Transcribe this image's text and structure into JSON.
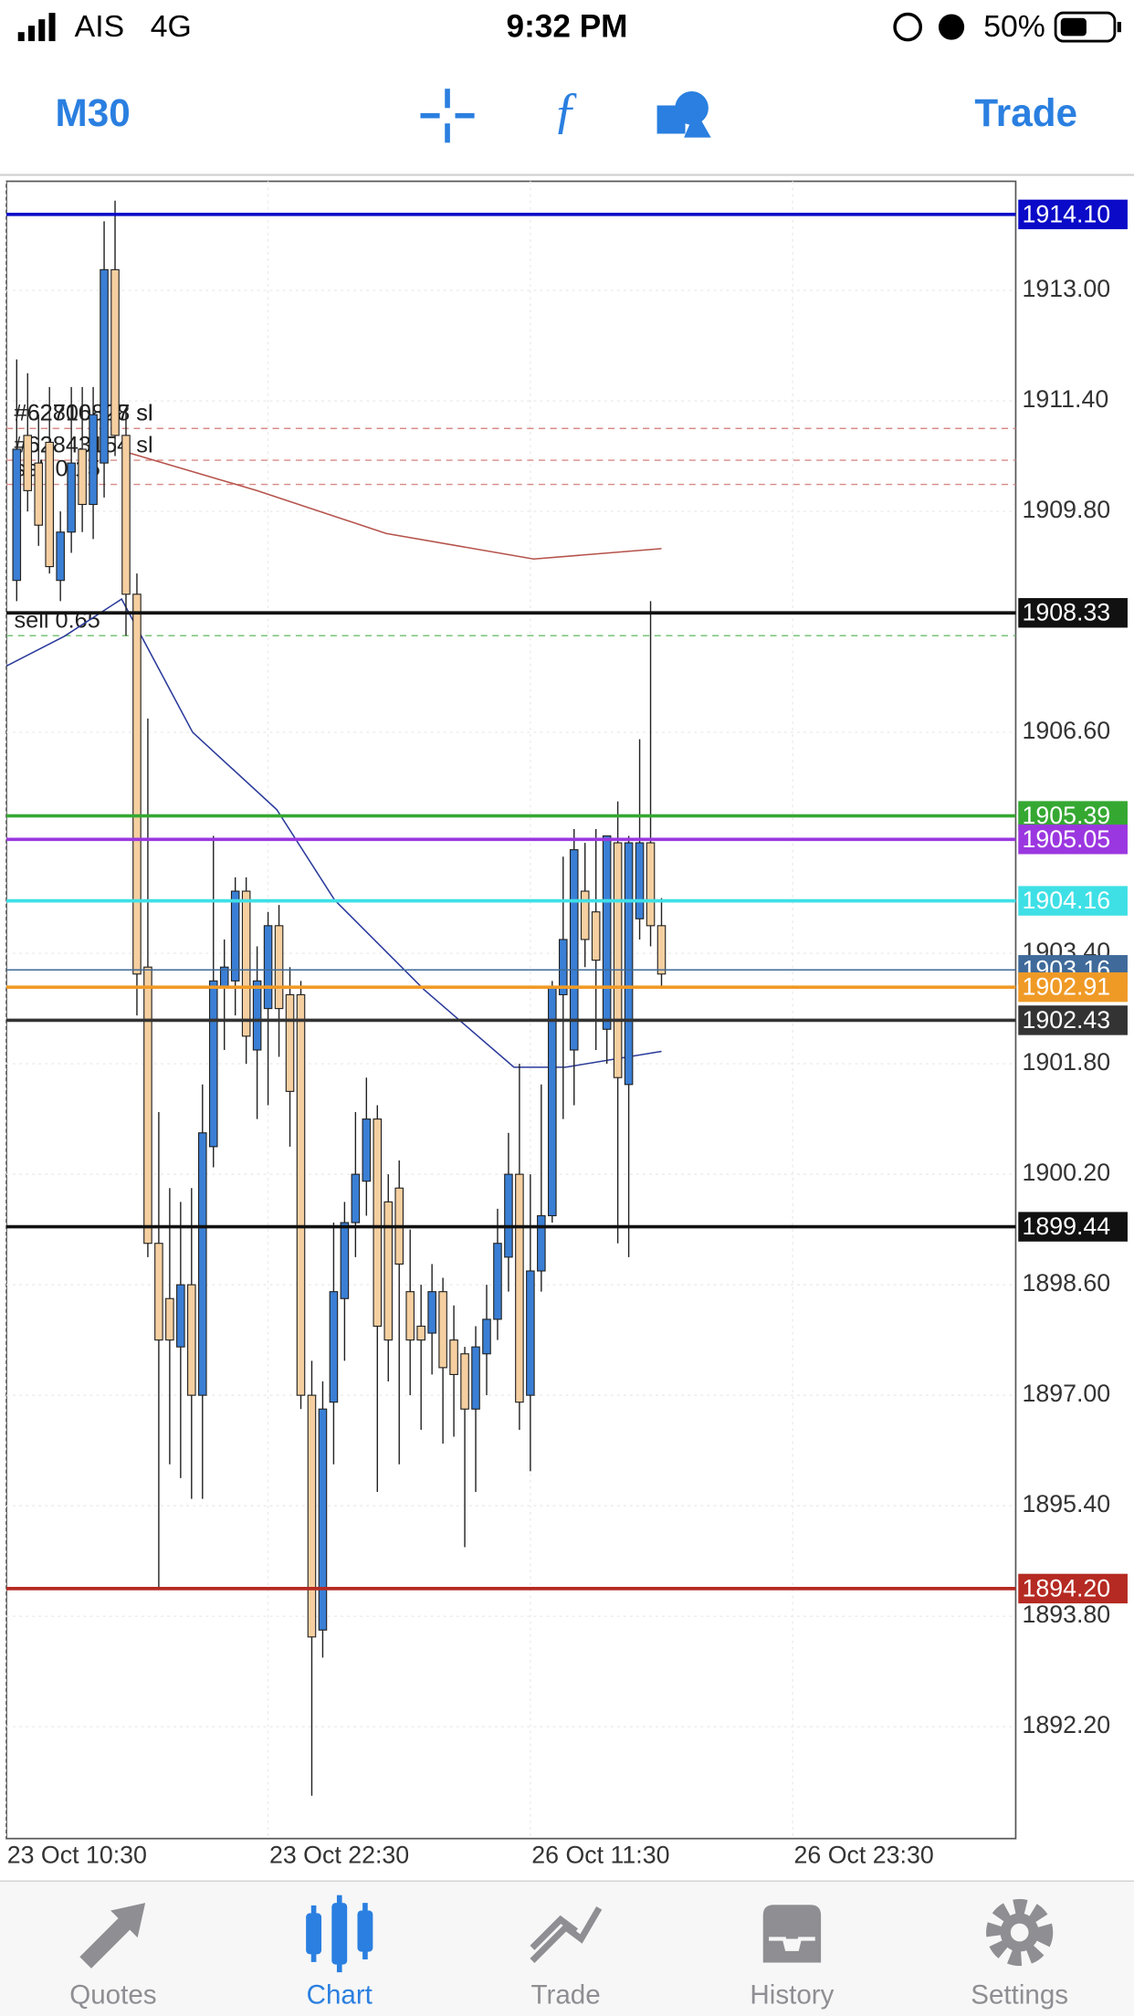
{
  "status_bar": {
    "carrier": "AIS",
    "network": "4G",
    "time": "9:32 PM",
    "battery": "50%"
  },
  "toolbar": {
    "timeframe": "M30",
    "trade": "Trade"
  },
  "chart_data": {
    "type": "candlestick",
    "up_color": "#3a7fd5",
    "down_color": "#f5cfa0",
    "grid": true,
    "ylim": [
      1890.58,
      1914.58
    ],
    "yticks": [
      {
        "value": 1913.0,
        "label": "1913.00"
      },
      {
        "value": 1911.4,
        "label": "1911.40"
      },
      {
        "value": 1909.8,
        "label": "1909.80"
      },
      {
        "value": 1906.6,
        "label": "1906.60"
      },
      {
        "value": 1903.4,
        "label": "1903.40"
      },
      {
        "value": 1901.8,
        "label": "1901.80"
      },
      {
        "value": 1900.2,
        "label": "1900.20"
      },
      {
        "value": 1898.6,
        "label": "1898.60"
      },
      {
        "value": 1897.0,
        "label": "1897.00"
      },
      {
        "value": 1895.4,
        "label": "1895.40"
      },
      {
        "value": 1893.8,
        "label": "1893.80"
      },
      {
        "value": 1892.2,
        "label": "1892.20"
      }
    ],
    "xlim": [
      -0.94,
      91.41
    ],
    "xticks": [
      {
        "value": -1,
        "label": "23 Oct 10:30"
      },
      {
        "value": 23,
        "label": "23 Oct 22:30"
      },
      {
        "value": 47,
        "label": "26 Oct 11:30"
      },
      {
        "value": 71,
        "label": "26 Oct 23:30"
      }
    ],
    "open": [
      1908.8,
      1910.9,
      1910.5,
      1910.8,
      1908.8,
      1909.5,
      1910.7,
      1909.9,
      1910.5,
      1913.3,
      1910.9,
      1908.6,
      1903.2,
      1899.2,
      1898.4,
      1897.7,
      1898.6,
      1897.0,
      1900.6,
      1902.9,
      1903.0,
      1904.3,
      1902.0,
      1902.6,
      1903.8,
      1902.8,
      1902.8,
      1897.0,
      1893.6,
      1896.9,
      1898.4,
      1899.5,
      1900.1,
      1901.0,
      1899.8,
      1900.0,
      1898.5,
      1898.0,
      1897.9,
      1898.5,
      1897.8,
      1897.6,
      1896.8,
      1897.6,
      1898.1,
      1899.0,
      1900.2,
      1897.0,
      1898.8,
      1899.6,
      1902.8,
      1902.0,
      1904.3,
      1904.0,
      1902.3,
      1905.0,
      1901.5,
      1903.9,
      1905.0,
      1903.8
    ],
    "high": [
      1912.0,
      1911.8,
      1911.2,
      1911.6,
      1909.8,
      1911.6,
      1911.6,
      1911.6,
      1914.0,
      1914.3,
      1911.3,
      1908.9,
      1906.8,
      1901.1,
      1900.0,
      1899.8,
      1900.0,
      1901.5,
      1905.1,
      1903.6,
      1904.5,
      1904.5,
      1903.5,
      1904.0,
      1904.1,
      1903.2,
      1903.0,
      1897.5,
      1897.2,
      1899.5,
      1899.8,
      1901.1,
      1901.6,
      1901.2,
      1900.2,
      1900.4,
      1899.4,
      1898.6,
      1898.9,
      1898.7,
      1898.3,
      1897.7,
      1898.0,
      1898.6,
      1899.7,
      1900.8,
      1901.8,
      1900.2,
      1901.5,
      1903.0,
      1904.8,
      1905.2,
      1905.0,
      1905.2,
      1905.1,
      1905.6,
      1905.1,
      1906.5,
      1908.5,
      1904.2
    ],
    "low": [
      1908.5,
      1909.8,
      1909.3,
      1908.9,
      1908.5,
      1909.2,
      1909.5,
      1909.4,
      1910.0,
      1910.6,
      1908.0,
      1902.5,
      1899.0,
      1894.2,
      1896.0,
      1895.8,
      1895.5,
      1895.5,
      1900.3,
      1902.0,
      1902.5,
      1901.8,
      1901.0,
      1901.2,
      1901.9,
      1900.6,
      1896.8,
      1891.2,
      1893.2,
      1896.0,
      1897.5,
      1899.0,
      1899.6,
      1895.6,
      1897.2,
      1896.0,
      1897.0,
      1896.5,
      1897.3,
      1896.3,
      1896.4,
      1894.8,
      1895.6,
      1897.0,
      1897.8,
      1898.5,
      1896.5,
      1895.9,
      1898.5,
      1899.5,
      1901.0,
      1901.2,
      1903.2,
      1902.0,
      1901.8,
      1899.2,
      1899.0,
      1903.6,
      1903.5,
      1902.9
    ],
    "close": [
      1910.7,
      1910.1,
      1909.6,
      1909.0,
      1909.5,
      1910.5,
      1909.9,
      1911.2,
      1913.3,
      1910.9,
      1908.6,
      1903.1,
      1899.2,
      1897.8,
      1897.8,
      1898.6,
      1897.0,
      1900.8,
      1903.0,
      1903.2,
      1904.3,
      1902.2,
      1903.0,
      1903.8,
      1902.6,
      1901.4,
      1897.0,
      1893.5,
      1896.8,
      1898.5,
      1899.5,
      1900.2,
      1901.0,
      1898.0,
      1897.8,
      1898.9,
      1897.8,
      1897.8,
      1898.5,
      1897.4,
      1897.3,
      1896.8,
      1897.7,
      1898.1,
      1899.2,
      1900.2,
      1896.9,
      1898.8,
      1899.6,
      1902.9,
      1903.6,
      1904.9,
      1903.6,
      1903.3,
      1905.1,
      1901.6,
      1905.0,
      1905.0,
      1903.8,
      1903.1
    ],
    "moving_averages": [
      {
        "color": "#b5524a",
        "x": [
          10.2,
          22,
          33.8,
          47.3,
          59
        ],
        "values": [
          1910.65,
          1910.1,
          1909.48,
          1909.11,
          1909.26
        ]
      },
      {
        "color": "#2a3a9a",
        "x": [
          -0.94,
          4.35,
          9.6,
          16.1,
          23.8,
          29.1,
          37.3,
          45.5,
          50.2,
          59
        ],
        "values": [
          1907.56,
          1907.99,
          1908.53,
          1906.6,
          1905.48,
          1904.17,
          1902.87,
          1901.75,
          1901.75,
          1901.98
        ]
      }
    ],
    "levels": [
      {
        "value": 1914.1,
        "label": "1914.10",
        "color": "#0a0ac8"
      },
      {
        "value": 1908.33,
        "label": "1908.33",
        "color": "#111111"
      },
      {
        "value": 1905.39,
        "label": "1905.39",
        "color": "#35a832"
      },
      {
        "value": 1905.05,
        "label": "1905.05",
        "color": "#9b37e0"
      },
      {
        "value": 1904.16,
        "label": "1904.16",
        "color": "#3ee0e6"
      },
      {
        "value": 1903.16,
        "label": "1903.16",
        "color": "#3f6a9a"
      },
      {
        "value": 1902.91,
        "label": "1902.91",
        "color": "#f09a26"
      },
      {
        "value": 1902.43,
        "label": "1902.43",
        "color": "#333333"
      },
      {
        "value": 1899.44,
        "label": "1899.44",
        "color": "#111111"
      },
      {
        "value": 1894.2,
        "label": "1894.20",
        "color": "#b52a22"
      }
    ],
    "orders": [
      {
        "value": 1911.0,
        "label": "#62706827 sl",
        "color": "#d88a86"
      },
      {
        "value": 1911.0,
        "label": "#62810828 sl",
        "color": "#d88a86"
      },
      {
        "value": 1910.54,
        "label": "#62843154 sl",
        "color": "#d88a86"
      },
      {
        "value": 1910.19,
        "label": "sell 0.15",
        "color": "#d88a86"
      },
      {
        "value": 1908.0,
        "label": "sell 0.65",
        "color": "#6cbf6a"
      }
    ]
  },
  "tab_bar": {
    "tabs": [
      "Quotes",
      "Chart",
      "Trade",
      "History",
      "Settings"
    ],
    "active": 1
  }
}
